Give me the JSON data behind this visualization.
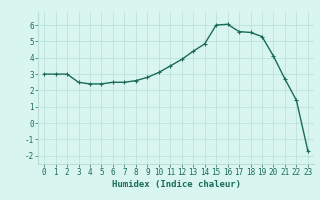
{
  "x": [
    0,
    1,
    2,
    3,
    4,
    5,
    6,
    7,
    8,
    9,
    10,
    11,
    12,
    13,
    14,
    15,
    16,
    17,
    18,
    19,
    20,
    21,
    22,
    23
  ],
  "y": [
    3.0,
    3.0,
    3.0,
    2.5,
    2.4,
    2.4,
    2.5,
    2.5,
    2.6,
    2.8,
    3.1,
    3.5,
    3.9,
    4.4,
    4.85,
    6.0,
    6.05,
    5.6,
    5.55,
    5.3,
    4.1,
    2.7,
    1.4,
    -1.7
  ],
  "line_color": "#1a6b5a",
  "marker": "+",
  "marker_size": 3.5,
  "bg_color": "#d8f5f0",
  "grid_color": "#b8ddd6",
  "xlabel": "Humidex (Indice chaleur)",
  "xlim": [
    -0.5,
    23.5
  ],
  "ylim": [
    -2.5,
    6.8
  ],
  "xticks": [
    0,
    1,
    2,
    3,
    4,
    5,
    6,
    7,
    8,
    9,
    10,
    11,
    12,
    13,
    14,
    15,
    16,
    17,
    18,
    19,
    20,
    21,
    22,
    23
  ],
  "yticks": [
    -2,
    -1,
    0,
    1,
    2,
    3,
    4,
    5,
    6
  ],
  "tick_fontsize": 5.5,
  "xlabel_fontsize": 6.5,
  "line_width": 1.0
}
